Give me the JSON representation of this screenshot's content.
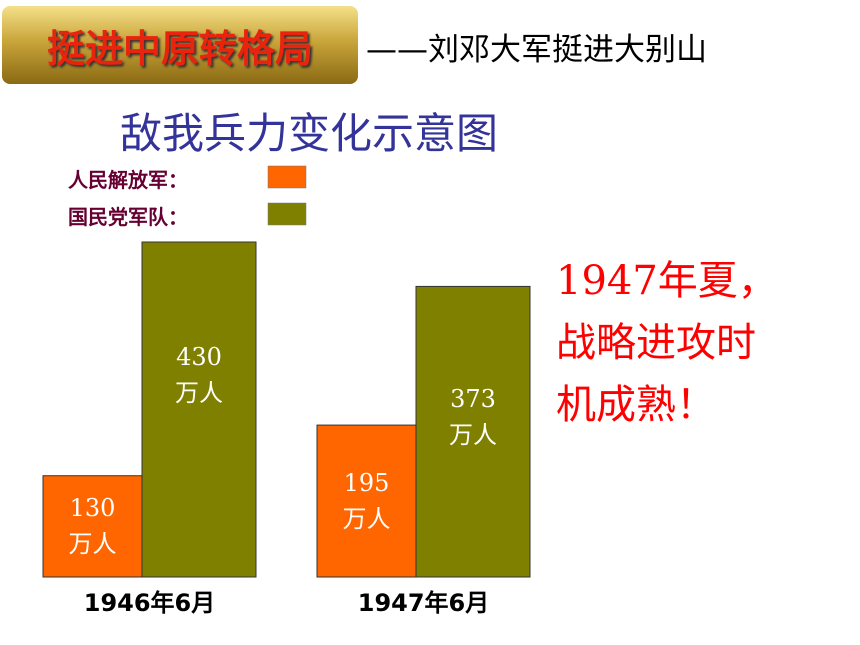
{
  "header": {
    "title": "挺进中原转格局",
    "subtitle": "——刘邓大军挺进大别山"
  },
  "chart_data": {
    "type": "bar",
    "title": "敌我兵力变化示意图",
    "categories": [
      "1946年6月",
      "1947年6月"
    ],
    "series": [
      {
        "name": "人民解放军：",
        "color": "#ff6600",
        "values": [
          130,
          195
        ],
        "value_labels": [
          "130万人",
          "195万人"
        ]
      },
      {
        "name": "国民党军队：",
        "color": "#808000",
        "values": [
          430,
          373
        ],
        "value_labels": [
          "430万人",
          "373万人"
        ]
      }
    ]
  },
  "annotation": [
    "1947年夏，",
    "战略进攻时",
    "机成熟！"
  ]
}
